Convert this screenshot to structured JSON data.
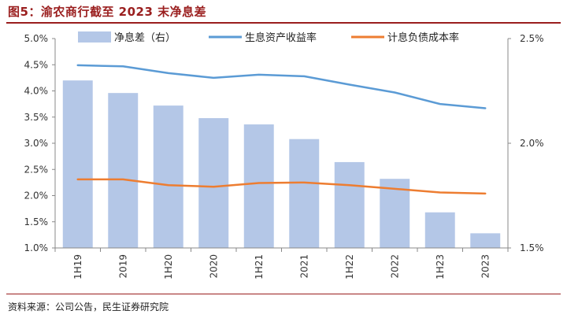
{
  "header": {
    "title": "图5：渝农商行截至 2023 末净息差"
  },
  "footer": {
    "source": "资料来源：公司公告，民生证券研究院"
  },
  "chart_data": {
    "type": "bar",
    "title": "图5：渝农商行截至 2023 末净息差",
    "categories": [
      "1H19",
      "2019",
      "1H20",
      "2020",
      "1H21",
      "2021",
      "1H22",
      "2022",
      "1H23",
      "2023"
    ],
    "series": [
      {
        "name": "净息差（右）",
        "type": "bar",
        "axis": "right",
        "color": "#b4c7e7",
        "values": [
          2.3,
          2.24,
          2.18,
          2.12,
          2.09,
          2.02,
          1.91,
          1.83,
          1.67,
          1.57
        ]
      },
      {
        "name": "生息资产收益率",
        "type": "line",
        "axis": "left",
        "color": "#5b9bd5",
        "values": [
          4.49,
          4.47,
          4.34,
          4.25,
          4.31,
          4.28,
          4.12,
          3.97,
          3.75,
          3.67
        ]
      },
      {
        "name": "计息负债成本率",
        "type": "line",
        "axis": "left",
        "color": "#ed7d31",
        "values": [
          2.31,
          2.31,
          2.2,
          2.17,
          2.24,
          2.25,
          2.2,
          2.13,
          2.06,
          2.04
        ]
      }
    ],
    "left_axis": {
      "ylim": [
        1.0,
        5.0
      ],
      "ticks": [
        "1.0%",
        "1.5%",
        "2.0%",
        "2.5%",
        "3.0%",
        "3.5%",
        "4.0%",
        "4.5%",
        "5.0%"
      ]
    },
    "right_axis": {
      "ylim": [
        1.5,
        2.5
      ],
      "ticks": [
        "1.5%",
        "2.0%",
        "2.5%"
      ]
    },
    "legend_position": "top",
    "grid": false
  }
}
